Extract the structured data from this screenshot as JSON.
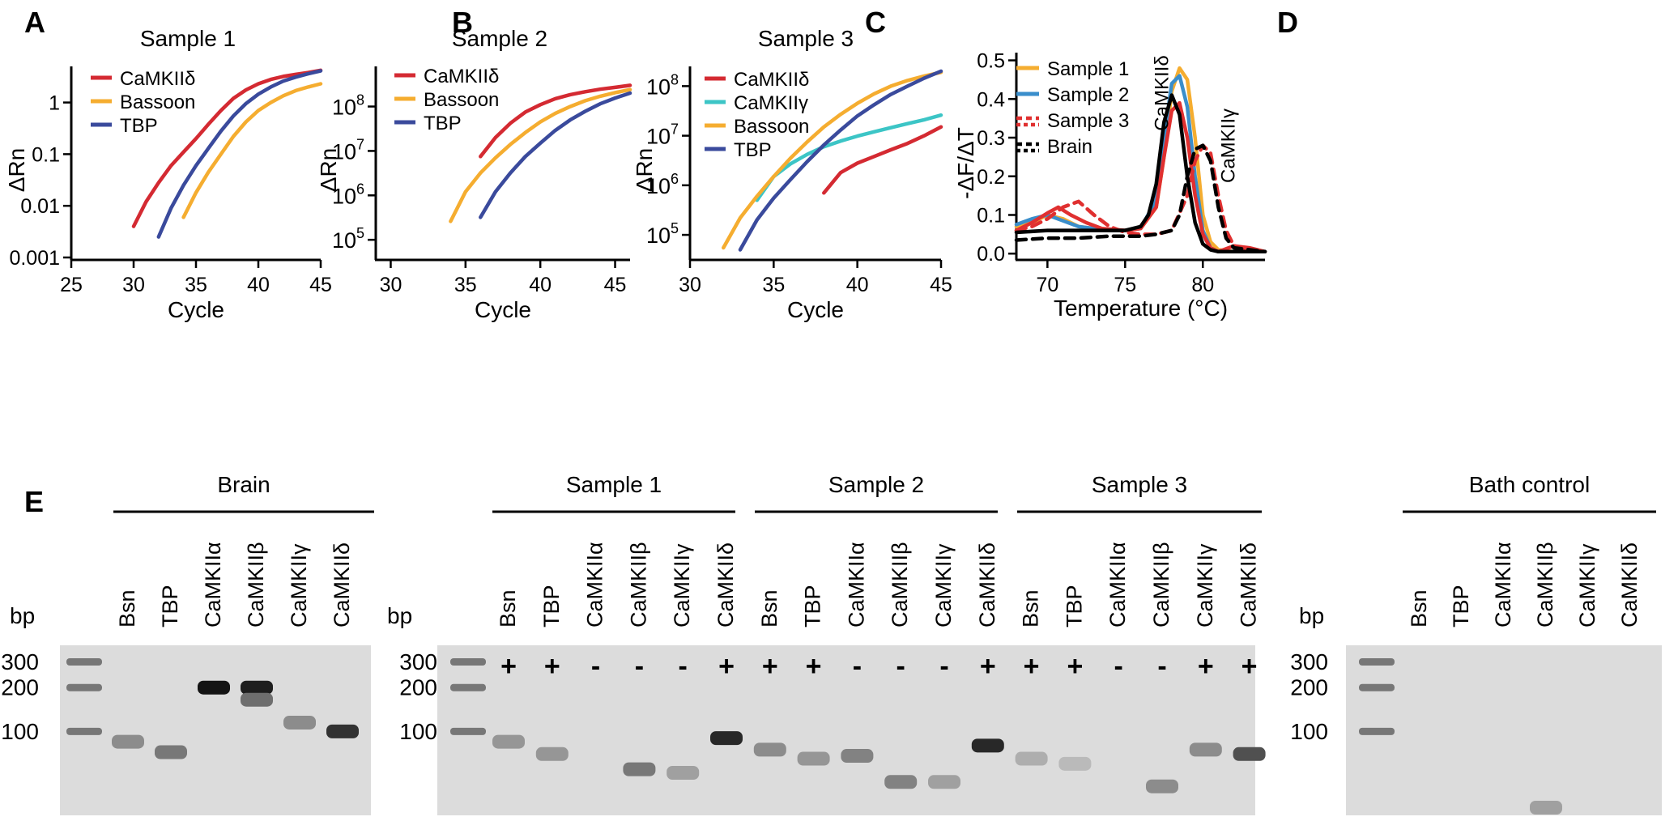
{
  "colors": {
    "camkiid": "#d42a32",
    "bassoon": "#f5ad30",
    "tbp": "#3a4a9c",
    "camkiig": "#3cc5c6",
    "sample1": "#f5ad30",
    "sample2": "#3a8ecb",
    "sample3": "#e03030",
    "brain": "#000000"
  },
  "panels": {
    "A": {
      "letter": "A",
      "title": "Sample 1"
    },
    "B": {
      "letter": "B",
      "title": "Sample 2"
    },
    "C": {
      "letter": "C",
      "title": "Sample 3"
    },
    "D": {
      "letter": "D",
      "title": ""
    },
    "E": {
      "letter": "E"
    }
  },
  "chart_data": [
    {
      "id": "A",
      "type": "line",
      "title": "Sample 1",
      "xlabel": "Cycle",
      "ylabel": "ΔRn",
      "yscale": "log",
      "xlim": [
        25,
        45
      ],
      "ylim": [
        0.001,
        5
      ],
      "xticks": [
        25,
        30,
        35,
        40,
        45
      ],
      "yticks": [
        {
          "v": 1,
          "label": "1"
        },
        {
          "v": 0.1,
          "label": "0.1"
        },
        {
          "v": 0.01,
          "label": "0.01"
        },
        {
          "v": 0.001,
          "label": "0.001"
        }
      ],
      "series": [
        {
          "name": "CaMKIIδ",
          "color": "#d42a32",
          "x": [
            30,
            31,
            32,
            33,
            34,
            35,
            36,
            37,
            38,
            39,
            40,
            41,
            42,
            43,
            44,
            45
          ],
          "y": [
            0.004,
            0.012,
            0.028,
            0.06,
            0.11,
            0.2,
            0.38,
            0.7,
            1.2,
            1.75,
            2.3,
            2.8,
            3.2,
            3.5,
            3.8,
            4.2
          ]
        },
        {
          "name": "Bassoon",
          "color": "#f5ad30",
          "x": [
            34,
            35,
            36,
            37,
            38,
            39,
            40,
            41,
            42,
            43,
            44,
            45
          ],
          "y": [
            0.006,
            0.018,
            0.045,
            0.1,
            0.22,
            0.42,
            0.7,
            1.0,
            1.35,
            1.7,
            2.0,
            2.3
          ]
        },
        {
          "name": "TBP",
          "color": "#3a4a9c",
          "x": [
            32,
            33,
            34,
            35,
            36,
            37,
            38,
            39,
            40,
            41,
            42,
            43,
            44,
            45
          ],
          "y": [
            0.0025,
            0.009,
            0.025,
            0.06,
            0.13,
            0.28,
            0.55,
            0.95,
            1.45,
            2.0,
            2.6,
            3.1,
            3.6,
            4.1
          ]
        }
      ]
    },
    {
      "id": "B",
      "type": "line",
      "title": "Sample 2",
      "xlabel": "Cycle",
      "ylabel": "ΔRn",
      "yscale": "log",
      "xlim": [
        29,
        46
      ],
      "ylim": [
        40000,
        800000000
      ],
      "xticks": [
        30,
        35,
        40,
        45
      ],
      "yticks": [
        {
          "v": 100000000,
          "base": "10",
          "exp": "8"
        },
        {
          "v": 10000000,
          "base": "10",
          "exp": "7"
        },
        {
          "v": 1000000,
          "base": "10",
          "exp": "6"
        },
        {
          "v": 100000,
          "base": "10",
          "exp": "5"
        }
      ],
      "series": [
        {
          "name": "CaMKIIδ",
          "color": "#d42a32",
          "x": [
            36,
            37,
            38,
            39,
            40,
            41,
            42,
            43,
            44,
            45,
            46
          ],
          "y": [
            7500000,
            20000000,
            42000000,
            75000000,
            110000000,
            150000000,
            185000000,
            215000000,
            245000000,
            270000000,
            300000000
          ]
        },
        {
          "name": "Bassoon",
          "color": "#f5ad30",
          "x": [
            34,
            35,
            36,
            37,
            38,
            39,
            40,
            41,
            42,
            43,
            44,
            45,
            46
          ],
          "y": [
            260000,
            1200000,
            3200000,
            7000000,
            14000000,
            26000000,
            45000000,
            70000000,
            100000000,
            135000000,
            170000000,
            205000000,
            240000000
          ]
        },
        {
          "name": "TBP",
          "color": "#3a4a9c",
          "x": [
            36,
            37,
            38,
            39,
            40,
            41,
            42,
            43,
            44,
            45,
            46
          ],
          "y": [
            320000,
            1200000,
            3200000,
            7500000,
            15000000,
            29000000,
            50000000,
            78000000,
            115000000,
            155000000,
            200000000
          ]
        }
      ]
    },
    {
      "id": "C",
      "type": "line",
      "title": "Sample 3",
      "xlabel": "Cycle",
      "ylabel": "ΔRn",
      "yscale": "log",
      "xlim": [
        30,
        45
      ],
      "ylim": [
        35000,
        250000000
      ],
      "xticks": [
        30,
        35,
        40,
        45
      ],
      "yticks": [
        {
          "v": 100000000,
          "base": "10",
          "exp": "8"
        },
        {
          "v": 10000000,
          "base": "10",
          "exp": "7"
        },
        {
          "v": 1000000,
          "base": "10",
          "exp": "6"
        },
        {
          "v": 100000,
          "base": "10",
          "exp": "5"
        }
      ],
      "series": [
        {
          "name": "CaMKIIδ",
          "color": "#d42a32",
          "x": [
            38,
            39,
            40,
            41,
            42,
            43,
            44,
            45
          ],
          "y": [
            700000,
            1800000,
            2800000,
            3800000,
            5200000,
            7000000,
            10000000,
            15000000
          ]
        },
        {
          "name": "CaMKIIγ",
          "color": "#3cc5c6",
          "x": [
            34,
            35,
            36,
            37,
            38,
            39,
            40,
            41,
            42,
            43,
            44,
            45
          ],
          "y": [
            500000,
            1500000,
            2700000,
            4200000,
            6000000,
            7800000,
            9800000,
            12000000,
            14500000,
            17500000,
            21000000,
            26000000
          ]
        },
        {
          "name": "Bassoon",
          "color": "#f5ad30",
          "x": [
            32,
            33,
            34,
            35,
            36,
            37,
            38,
            39,
            40,
            41,
            42,
            43,
            44,
            45
          ],
          "y": [
            55000,
            220000,
            600000,
            1500000,
            3500000,
            7500000,
            15000000,
            27000000,
            45000000,
            70000000,
            100000000,
            130000000,
            160000000,
            190000000
          ]
        },
        {
          "name": "TBP",
          "color": "#3a4a9c",
          "x": [
            33,
            34,
            35,
            36,
            37,
            38,
            39,
            40,
            41,
            42,
            43,
            44,
            45
          ],
          "y": [
            50000,
            200000,
            550000,
            1300000,
            3000000,
            6500000,
            13000000,
            25000000,
            42000000,
            68000000,
            100000000,
            145000000,
            200000000
          ]
        }
      ]
    },
    {
      "id": "D",
      "type": "line",
      "title": "",
      "xlabel": "Temperature (°C)",
      "ylabel": "-ΔF/ΔT",
      "xlim": [
        68,
        84
      ],
      "ylim": [
        -0.01,
        0.52
      ],
      "xticks": [
        70,
        75,
        80
      ],
      "yticks": [
        {
          "v": 0.0,
          "label": "0.0"
        },
        {
          "v": 0.1,
          "label": "0.1"
        },
        {
          "v": 0.2,
          "label": "0.2"
        },
        {
          "v": 0.3,
          "label": "0.3"
        },
        {
          "v": 0.4,
          "label": "0.4"
        },
        {
          "v": 0.5,
          "label": "0.5"
        }
      ],
      "annotations": [
        {
          "text": "CaMKIIδ",
          "x": 78.5,
          "y": 0.5
        },
        {
          "text": "CaMKIIγ",
          "x": 81,
          "y": 0.29
        }
      ],
      "legend": [
        {
          "name": "Sample 1",
          "color": "#f5ad30",
          "style": "solid"
        },
        {
          "name": "Sample 2",
          "color": "#3a8ecb",
          "style": "solid"
        },
        {
          "name": "Sample 3",
          "color": "#e03030",
          "style": "dashed"
        },
        {
          "name": "Brain",
          "color": "#000000",
          "style": "dashed"
        }
      ],
      "series": [
        {
          "name": "Sample 1",
          "color": "#f5ad30",
          "dash": false,
          "x": [
            68,
            69,
            70,
            71,
            72,
            73,
            74,
            75,
            76,
            77,
            77.5,
            78,
            78.5,
            79,
            79.5,
            80,
            80.5,
            81,
            82,
            83,
            84
          ],
          "y": [
            0.07,
            0.08,
            0.1,
            0.09,
            0.07,
            0.065,
            0.06,
            0.06,
            0.065,
            0.12,
            0.25,
            0.42,
            0.48,
            0.45,
            0.3,
            0.1,
            0.03,
            0.01,
            0.005,
            0.005,
            0.005
          ]
        },
        {
          "name": "Sample 2",
          "color": "#3a8ecb",
          "dash": false,
          "x": [
            68,
            69,
            70,
            71,
            72,
            73,
            74,
            75,
            76,
            77,
            77.5,
            78,
            78.5,
            79,
            79.5,
            80,
            80.5,
            81,
            82,
            83,
            84
          ],
          "y": [
            0.075,
            0.09,
            0.1,
            0.085,
            0.07,
            0.065,
            0.06,
            0.06,
            0.065,
            0.14,
            0.3,
            0.44,
            0.46,
            0.38,
            0.2,
            0.06,
            0.015,
            0.005,
            0.005,
            0.005,
            0.005
          ]
        },
        {
          "name": "Sample 3 solid",
          "color": "#e03030",
          "dash": false,
          "x": [
            68,
            69,
            70,
            70.7,
            71.5,
            72.5,
            73.5,
            75,
            76,
            77,
            77.5,
            78,
            78.5,
            79,
            79.5,
            80,
            80.5,
            81,
            82,
            83,
            84
          ],
          "y": [
            0.06,
            0.08,
            0.105,
            0.12,
            0.1,
            0.08,
            0.065,
            0.06,
            0.065,
            0.12,
            0.25,
            0.37,
            0.39,
            0.3,
            0.15,
            0.05,
            0.015,
            0.005,
            0.02,
            0.015,
            0.005
          ]
        },
        {
          "name": "Sample 3 dashed",
          "color": "#e03030",
          "dash": true,
          "x": [
            68,
            69,
            70,
            71,
            72,
            73,
            74,
            75,
            76,
            77,
            78,
            79,
            79.5,
            80,
            80.5,
            81,
            81.5,
            82,
            83,
            84
          ],
          "y": [
            0.06,
            0.07,
            0.09,
            0.12,
            0.135,
            0.1,
            0.07,
            0.055,
            0.05,
            0.05,
            0.06,
            0.15,
            0.24,
            0.28,
            0.26,
            0.15,
            0.06,
            0.02,
            0.01,
            0.005
          ]
        },
        {
          "name": "Brain solid",
          "color": "#000000",
          "dash": false,
          "x": [
            68,
            70,
            72,
            74,
            75,
            76,
            76.5,
            77,
            77.5,
            78,
            78.5,
            79,
            79.5,
            80,
            80.5,
            81,
            82,
            83,
            84
          ],
          "y": [
            0.055,
            0.06,
            0.06,
            0.06,
            0.06,
            0.07,
            0.1,
            0.18,
            0.34,
            0.41,
            0.36,
            0.2,
            0.08,
            0.025,
            0.01,
            0.005,
            0.005,
            0.005,
            0.005
          ]
        },
        {
          "name": "Brain dashed",
          "color": "#000000",
          "dash": true,
          "x": [
            68,
            70,
            72,
            74,
            76,
            77,
            78,
            78.5,
            79,
            79.5,
            80,
            80.5,
            81,
            81.5,
            82,
            83,
            84
          ],
          "y": [
            0.035,
            0.04,
            0.04,
            0.045,
            0.045,
            0.05,
            0.06,
            0.1,
            0.2,
            0.27,
            0.28,
            0.24,
            0.12,
            0.04,
            0.015,
            0.01,
            0.005
          ]
        }
      ]
    }
  ],
  "gels": [
    {
      "id": "brain-gel",
      "group_labels": [
        "Brain"
      ],
      "lane_labels": [
        "Bsn",
        "TBP",
        "CaMKIIα",
        "CaMKIIβ",
        "CaMKIIγ",
        "CaMKIIδ"
      ],
      "marks": [],
      "ladder": [
        {
          "label": "300",
          "bp": 300
        },
        {
          "label": "200",
          "bp": 200
        },
        {
          "label": "100",
          "bp": 100
        }
      ],
      "bp_label": "bp",
      "bands": [
        {
          "lane": 0,
          "bp": 85,
          "intensity": 0.35
        },
        {
          "lane": 1,
          "bp": 72,
          "intensity": 0.45
        },
        {
          "lane": 2,
          "bp": 200,
          "intensity": 0.95
        },
        {
          "lane": 3,
          "bp": 200,
          "intensity": 0.9
        },
        {
          "lane": 3,
          "bp": 165,
          "intensity": 0.5
        },
        {
          "lane": 4,
          "bp": 115,
          "intensity": 0.35
        },
        {
          "lane": 5,
          "bp": 100,
          "intensity": 0.8
        }
      ]
    },
    {
      "id": "samples-gel",
      "group_labels": [
        "Sample 1",
        "Sample 2",
        "Sample 3"
      ],
      "lane_labels": [
        "Bsn",
        "TBP",
        "CaMKIIα",
        "CaMKIIβ",
        "CaMKIIγ",
        "CaMKIIδ",
        "Bsn",
        "TBP",
        "CaMKIIα",
        "CaMKIIβ",
        "CaMKIIγ",
        "CaMKIIδ",
        "Bsn",
        "TBP",
        "CaMKIIα",
        "CaMKIIβ",
        "CaMKIIγ",
        "CaMKIIδ"
      ],
      "marks": [
        "+",
        "+",
        "-",
        "-",
        "-",
        "+",
        "+",
        "+",
        "-",
        "-",
        "-",
        "+",
        "+",
        "+",
        "-",
        "-",
        "+",
        "+"
      ],
      "ladder": [
        {
          "label": "300",
          "bp": 300
        },
        {
          "label": "200",
          "bp": 200
        },
        {
          "label": "100",
          "bp": 100
        }
      ],
      "bp_label": "bp",
      "bands": [
        {
          "lane": 0,
          "bp": 85,
          "intensity": 0.3
        },
        {
          "lane": 1,
          "bp": 70,
          "intensity": 0.3
        },
        {
          "lane": 3,
          "bp": 55,
          "intensity": 0.45
        },
        {
          "lane": 4,
          "bp": 52,
          "intensity": 0.25
        },
        {
          "lane": 5,
          "bp": 90,
          "intensity": 0.85
        },
        {
          "lane": 6,
          "bp": 75,
          "intensity": 0.35
        },
        {
          "lane": 7,
          "bp": 65,
          "intensity": 0.3
        },
        {
          "lane": 8,
          "bp": 68,
          "intensity": 0.4
        },
        {
          "lane": 9,
          "bp": 45,
          "intensity": 0.4
        },
        {
          "lane": 10,
          "bp": 45,
          "intensity": 0.25
        },
        {
          "lane": 11,
          "bp": 80,
          "intensity": 0.85
        },
        {
          "lane": 12,
          "bp": 65,
          "intensity": 0.18
        },
        {
          "lane": 13,
          "bp": 60,
          "intensity": 0.12
        },
        {
          "lane": 15,
          "bp": 42,
          "intensity": 0.35
        },
        {
          "lane": 16,
          "bp": 75,
          "intensity": 0.35
        },
        {
          "lane": 17,
          "bp": 70,
          "intensity": 0.65
        }
      ]
    },
    {
      "id": "bath-gel",
      "group_labels": [
        "Bath control"
      ],
      "lane_labels": [
        "Bsn",
        "TBP",
        "CaMKIIα",
        "CaMKIIβ",
        "CaMKIIγ",
        "CaMKIIδ"
      ],
      "marks": [],
      "ladder": [
        {
          "label": "300",
          "bp": 300
        },
        {
          "label": "200",
          "bp": 200
        },
        {
          "label": "100",
          "bp": 100
        }
      ],
      "bp_label": "bp",
      "bands": [
        {
          "lane": 3,
          "bp": 30,
          "intensity": 0.25
        }
      ]
    }
  ]
}
